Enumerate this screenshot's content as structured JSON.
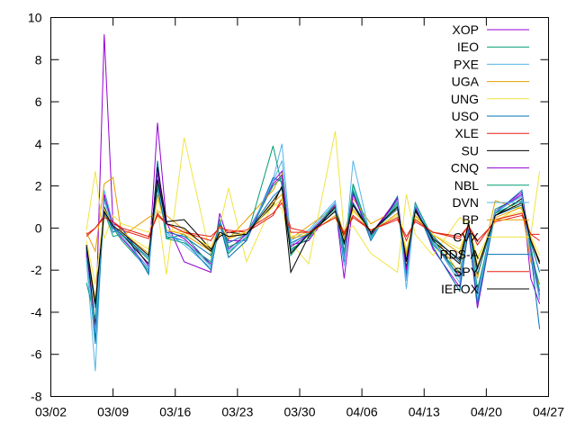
{
  "chart_data": {
    "type": "line",
    "title": "",
    "xlabel": "",
    "ylabel": "",
    "x_ticks": [
      "03/02",
      "03/09",
      "03/16",
      "03/23",
      "03/30",
      "04/06",
      "04/13",
      "04/20",
      "04/27"
    ],
    "xlim": [
      "2020-03-02",
      "2020-04-27"
    ],
    "ylim": [
      -8,
      10
    ],
    "y_ticks": [
      -8,
      -6,
      -4,
      -2,
      0,
      2,
      4,
      6,
      8,
      10
    ],
    "grid": false,
    "legend_position": "top-right",
    "x": [
      "2020-03-06",
      "2020-03-07",
      "2020-03-08",
      "2020-03-09",
      "2020-03-10",
      "2020-03-13",
      "2020-03-14",
      "2020-03-15",
      "2020-03-17",
      "2020-03-20",
      "2020-03-21",
      "2020-03-22",
      "2020-03-24",
      "2020-03-27",
      "2020-03-28",
      "2020-03-29",
      "2020-03-31",
      "2020-04-03",
      "2020-04-04",
      "2020-04-05",
      "2020-04-07",
      "2020-04-10",
      "2020-04-11",
      "2020-04-12",
      "2020-04-14",
      "2020-04-17",
      "2020-04-18",
      "2020-04-19",
      "2020-04-21",
      "2020-04-24",
      "2020-04-25",
      "2020-04-26"
    ],
    "series": [
      {
        "name": "XOP",
        "color": "#9400d3",
        "values": [
          -1.0,
          -5.2,
          9.2,
          0.2,
          0.0,
          -1.8,
          5.0,
          0.3,
          -1.6,
          -2.1,
          0.7,
          -0.6,
          -0.6,
          2.2,
          2.7,
          -0.8,
          -0.6,
          1.1,
          -2.4,
          1.2,
          -0.3,
          1.4,
          -2.4,
          1.2,
          -1.0,
          -2.8,
          -0.1,
          -3.8,
          0.8,
          1.7,
          -2.4,
          -3.6
        ]
      },
      {
        "name": "IEO",
        "color": "#009e73",
        "values": [
          -1.3,
          -5.3,
          1.4,
          0.0,
          -0.6,
          -2.0,
          3.1,
          -0.5,
          -0.3,
          -1.8,
          0.2,
          -1.2,
          -0.4,
          2.0,
          2.4,
          -1.3,
          -0.2,
          0.9,
          -1.2,
          1.8,
          -0.4,
          1.2,
          -2.1,
          1.0,
          -0.8,
          -2.1,
          0.1,
          -3.1,
          0.9,
          1.5,
          -1.2,
          -2.7
        ]
      },
      {
        "name": "PXE",
        "color": "#56b4e9",
        "values": [
          -1.5,
          -6.8,
          1.8,
          0.2,
          -0.4,
          -2.1,
          2.6,
          -0.2,
          -0.8,
          -1.9,
          0.4,
          -1.1,
          -0.5,
          2.3,
          4.0,
          -0.6,
          -0.1,
          1.3,
          -1.8,
          2.0,
          -0.5,
          1.3,
          -2.9,
          1.1,
          -0.6,
          -2.6,
          0.2,
          -3.4,
          0.7,
          1.6,
          -1.4,
          -3.4
        ]
      },
      {
        "name": "UGA",
        "color": "#e69f00",
        "values": [
          -0.2,
          -1.1,
          2.1,
          2.4,
          -0.4,
          0.5,
          0.8,
          0.6,
          -0.1,
          -1.0,
          -0.3,
          -0.5,
          0.4,
          1.8,
          2.6,
          -0.5,
          0.1,
          1.0,
          -0.3,
          1.4,
          0.2,
          0.9,
          -1.2,
          0.6,
          -0.3,
          -2.2,
          0.4,
          -2.4,
          1.3,
          0.9,
          -1.6,
          -2.7
        ]
      },
      {
        "name": "UNG",
        "color": "#f0e442",
        "values": [
          -0.1,
          2.7,
          -0.5,
          0.6,
          0.2,
          -0.2,
          0.9,
          -2.2,
          4.3,
          -1.4,
          0.1,
          1.9,
          -1.6,
          1.2,
          0.9,
          -0.7,
          -1.7,
          4.6,
          -0.2,
          0.1,
          -1.2,
          -2.1,
          1.6,
          -0.3,
          -1.3,
          0.5,
          0.2,
          -1.4,
          0.3,
          1.1,
          -0.3,
          2.7
        ]
      },
      {
        "name": "USO",
        "color": "#0072b2",
        "values": [
          -1.1,
          -5.5,
          1.0,
          -0.2,
          0.0,
          -2.2,
          3.2,
          -0.4,
          -0.6,
          -2.0,
          0.2,
          -1.4,
          -0.6,
          2.4,
          2.2,
          -1.1,
          -0.3,
          1.0,
          -1.6,
          1.7,
          -0.6,
          1.5,
          -2.2,
          1.0,
          -0.9,
          -3.0,
          0.0,
          -3.6,
          0.7,
          1.8,
          -1.2,
          -4.8
        ]
      },
      {
        "name": "XLE",
        "color": "#e51e10",
        "values": [
          -0.4,
          0.0,
          0.6,
          0.3,
          0.0,
          -0.4,
          0.6,
          0.2,
          -0.2,
          -0.4,
          0.0,
          -0.1,
          -0.2,
          0.6,
          1.4,
          0.0,
          -0.2,
          0.5,
          -0.2,
          0.5,
          -0.1,
          0.4,
          -0.4,
          0.3,
          -0.2,
          -0.4,
          0.1,
          -0.6,
          0.3,
          0.6,
          -0.3,
          -0.3
        ]
      },
      {
        "name": "SU",
        "color": "#000000",
        "values": [
          -0.9,
          -4.6,
          1.0,
          0.0,
          -0.3,
          -1.7,
          2.9,
          0.3,
          0.4,
          -1.0,
          -0.4,
          -0.2,
          -0.3,
          1.1,
          2.0,
          -2.1,
          -0.4,
          1.0,
          -0.5,
          1.1,
          -0.3,
          1.3,
          -1.9,
          0.9,
          -0.6,
          -1.7,
          0.2,
          -1.9,
          0.6,
          1.4,
          -0.6,
          -1.7
        ]
      },
      {
        "name": "CNQ",
        "color": "#9400d3",
        "values": [
          -1.2,
          -4.9,
          1.6,
          0.1,
          -0.5,
          -1.9,
          2.7,
          -0.1,
          -0.5,
          -1.7,
          0.3,
          -1.0,
          -0.3,
          2.1,
          2.5,
          -0.9,
          -0.3,
          1.1,
          -1.4,
          1.6,
          -0.4,
          1.4,
          -2.0,
          1.0,
          -0.7,
          -2.3,
          0.1,
          -3.0,
          0.8,
          1.6,
          -1.1,
          -3.2
        ]
      },
      {
        "name": "NBL",
        "color": "#009e73",
        "values": [
          -2.6,
          -4.3,
          0.8,
          -0.4,
          -0.3,
          -1.5,
          2.1,
          -0.5,
          -0.7,
          -1.6,
          0.4,
          -0.9,
          -0.5,
          3.9,
          2.0,
          -1.0,
          -0.5,
          1.2,
          -1.1,
          2.1,
          -0.4,
          1.1,
          -1.6,
          1.2,
          -0.5,
          -2.4,
          0.3,
          -2.9,
          0.7,
          1.3,
          -0.9,
          -3.0
        ]
      },
      {
        "name": "DVN",
        "color": "#56b4e9",
        "values": [
          -1.4,
          -5.0,
          1.3,
          0.0,
          -0.4,
          -1.9,
          2.4,
          -0.3,
          -0.6,
          -1.8,
          0.3,
          -1.1,
          -0.4,
          2.2,
          3.2,
          -0.8,
          -0.2,
          1.2,
          -1.5,
          3.2,
          -0.5,
          1.3,
          -2.5,
          1.1,
          -0.7,
          -2.4,
          0.2,
          -3.2,
          0.8,
          1.5,
          -1.3,
          -3.3
        ]
      },
      {
        "name": "BP",
        "color": "#e69f00",
        "values": [
          -0.8,
          -3.4,
          0.6,
          0.1,
          -0.2,
          -1.2,
          1.6,
          -0.1,
          -0.3,
          -1.1,
          0.1,
          -0.5,
          -0.2,
          1.2,
          1.6,
          -0.5,
          -0.3,
          0.6,
          -0.6,
          0.9,
          -0.2,
          0.7,
          -1.3,
          0.6,
          -0.3,
          -1.2,
          0.2,
          -1.8,
          0.5,
          1.0,
          -0.5,
          -1.6
        ]
      },
      {
        "name": "CVX",
        "color": "#f0e442",
        "values": [
          -0.6,
          -2.7,
          0.9,
          0.1,
          -0.2,
          -1.0,
          1.4,
          -0.1,
          -0.2,
          -0.9,
          0.1,
          -0.4,
          -0.2,
          1.0,
          1.4,
          -0.4,
          -0.2,
          0.5,
          -0.5,
          0.8,
          -0.1,
          0.6,
          -1.0,
          0.5,
          -0.3,
          -1.0,
          0.1,
          -1.5,
          0.4,
          0.8,
          -0.4,
          -1.3
        ]
      },
      {
        "name": "RDS-A",
        "color": "#0072b2",
        "values": [
          -0.9,
          -3.8,
          0.7,
          0.0,
          -0.3,
          -1.4,
          1.9,
          -0.2,
          -0.4,
          -1.3,
          0.2,
          -0.7,
          -0.3,
          1.5,
          1.9,
          -0.7,
          -0.3,
          0.8,
          -0.8,
          1.2,
          -0.2,
          0.9,
          -1.5,
          0.8,
          -0.4,
          -1.6,
          0.2,
          -2.2,
          0.6,
          1.1,
          -0.7,
          -2.1
        ]
      },
      {
        "name": "SPY",
        "color": "#e51e10",
        "values": [
          -0.3,
          0.0,
          0.5,
          0.3,
          -0.1,
          -0.5,
          0.7,
          0.2,
          -0.2,
          -0.6,
          0.1,
          -0.2,
          -0.1,
          0.7,
          1.2,
          -0.2,
          -0.2,
          0.5,
          -0.3,
          0.6,
          -0.1,
          0.5,
          -0.6,
          0.4,
          -0.2,
          -0.5,
          0.1,
          -0.8,
          0.4,
          0.7,
          -0.3,
          -0.6
        ]
      },
      {
        "name": "IEFOX",
        "color": "#000000",
        "values": [
          -0.8,
          -3.6,
          0.8,
          0.1,
          -0.2,
          -1.3,
          2.3,
          0.2,
          0.0,
          -1.1,
          -0.2,
          -0.4,
          -0.3,
          1.3,
          1.9,
          -1.2,
          -0.3,
          0.8,
          -0.7,
          1.1,
          -0.2,
          1.0,
          -1.6,
          0.8,
          -0.5,
          -1.5,
          0.2,
          -1.9,
          0.6,
          1.2,
          -0.6,
          -1.6
        ]
      }
    ]
  }
}
